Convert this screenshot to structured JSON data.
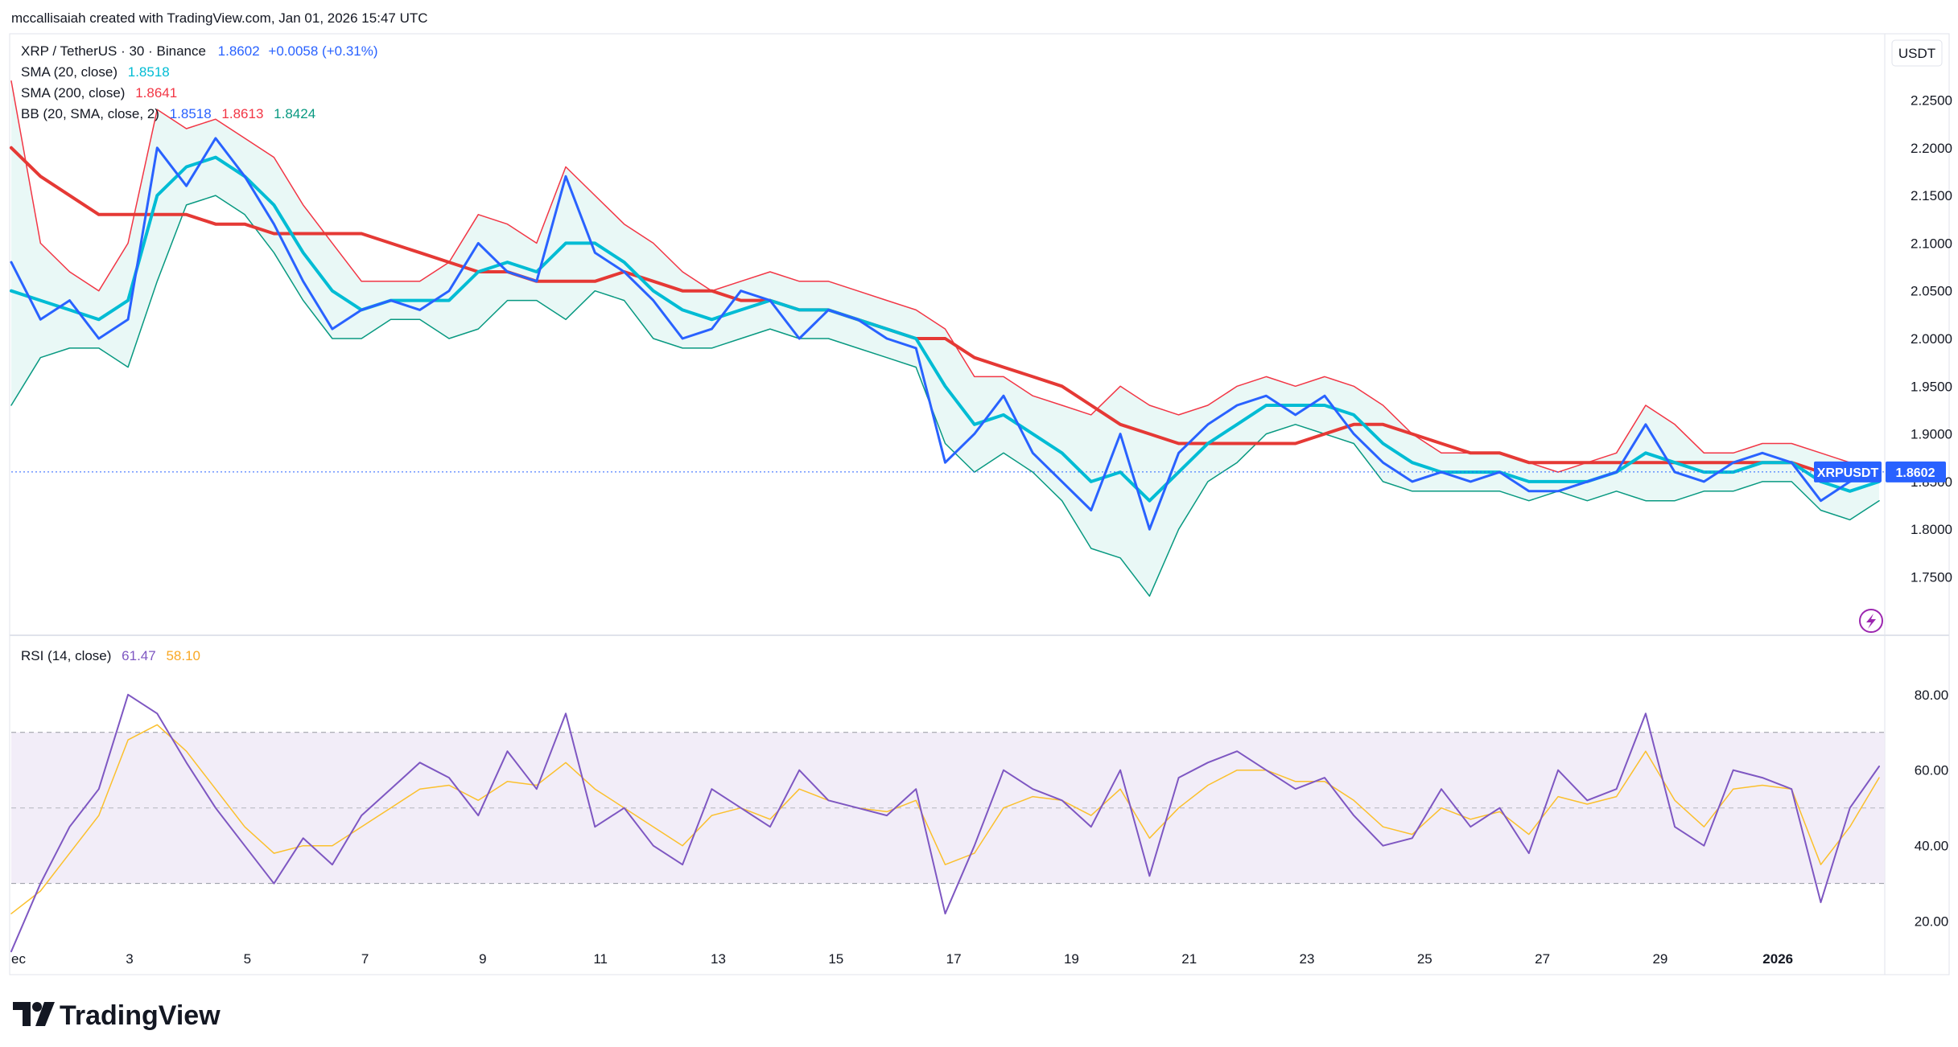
{
  "header": {
    "created_by": "mccallisaiah created with TradingView.com, Jan 01, 2026 15:47 UTC"
  },
  "legend": {
    "symbol": "XRP / TetherUS · 30 · Binance",
    "price": "1.8602",
    "change": "+0.0058 (+0.31%)",
    "sma20_label": "SMA (20, close)",
    "sma20_value": "1.8518",
    "sma200_label": "SMA (200, close)",
    "sma200_value": "1.8641",
    "bb_label": "BB (20, SMA, close, 2)",
    "bb_basis": "1.8518",
    "bb_upper": "1.8613",
    "bb_lower": "1.8424"
  },
  "rsi_legend": {
    "label": "RSI (14, close)",
    "value": "61.47",
    "ma_value": "58.10"
  },
  "currency": "USDT",
  "price_tag": {
    "symbol": "XRPUSDT",
    "value": "1.8602"
  },
  "brand": "TradingView",
  "colors": {
    "price_line": "#2962ff",
    "sma20": "#00bcd4",
    "sma200": "#e53935",
    "bb_upper": "#f23645",
    "bb_lower": "#089981",
    "bb_fill": "#e3f6f4",
    "rsi_line": "#7e57c2",
    "rsi_ma": "#fbc02d",
    "rsi_band": "#ede7f6",
    "last_price_tag": "#2962ff",
    "lightning": "#9c27b0"
  },
  "chart_data": [
    {
      "type": "line",
      "name": "price-pane",
      "x_ticks": [
        "ec",
        "3",
        "5",
        "7",
        "9",
        "11",
        "13",
        "15",
        "17",
        "19",
        "21",
        "23",
        "25",
        "27",
        "29",
        "2026"
      ],
      "y_ticks": [
        "2.2500",
        "2.2000",
        "2.1500",
        "2.1000",
        "2.0500",
        "2.0000",
        "1.9500",
        "1.9000",
        "1.8500",
        "1.8000",
        "1.7500"
      ],
      "ylim": [
        1.71,
        2.29
      ],
      "x": [
        0,
        1,
        2,
        3,
        4,
        5,
        6,
        7,
        8,
        9,
        10,
        11,
        12,
        13,
        14,
        15,
        16,
        17,
        18,
        19,
        20,
        21,
        22,
        23,
        24,
        25,
        26,
        27,
        28,
        29,
        30,
        31,
        32,
        33,
        34,
        35,
        36,
        37,
        38,
        39,
        40,
        41,
        42,
        43,
        44,
        45,
        46,
        47,
        48,
        49,
        50,
        51,
        52,
        53,
        54,
        55,
        56,
        57,
        58,
        59,
        60,
        61,
        62,
        63,
        64
      ],
      "series": [
        {
          "role": "price",
          "values": [
            2.08,
            2.02,
            2.04,
            2.0,
            2.02,
            2.2,
            2.16,
            2.21,
            2.17,
            2.12,
            2.06,
            2.01,
            2.03,
            2.04,
            2.03,
            2.05,
            2.1,
            2.07,
            2.06,
            2.17,
            2.09,
            2.07,
            2.04,
            2.0,
            2.01,
            2.05,
            2.04,
            2.0,
            2.03,
            2.02,
            2.0,
            1.99,
            1.87,
            1.9,
            1.94,
            1.88,
            1.85,
            1.82,
            1.9,
            1.8,
            1.88,
            1.91,
            1.93,
            1.94,
            1.92,
            1.94,
            1.9,
            1.87,
            1.85,
            1.86,
            1.85,
            1.86,
            1.84,
            1.84,
            1.85,
            1.86,
            1.91,
            1.86,
            1.85,
            1.87,
            1.88,
            1.87,
            1.83,
            1.85,
            1.86
          ]
        },
        {
          "role": "sma20",
          "values": [
            2.05,
            2.04,
            2.03,
            2.02,
            2.04,
            2.15,
            2.18,
            2.19,
            2.17,
            2.14,
            2.09,
            2.05,
            2.03,
            2.04,
            2.04,
            2.04,
            2.07,
            2.08,
            2.07,
            2.1,
            2.1,
            2.08,
            2.05,
            2.03,
            2.02,
            2.03,
            2.04,
            2.03,
            2.03,
            2.02,
            2.01,
            2.0,
            1.95,
            1.91,
            1.92,
            1.9,
            1.88,
            1.85,
            1.86,
            1.83,
            1.86,
            1.89,
            1.91,
            1.93,
            1.93,
            1.93,
            1.92,
            1.89,
            1.87,
            1.86,
            1.86,
            1.86,
            1.85,
            1.85,
            1.85,
            1.86,
            1.88,
            1.87,
            1.86,
            1.86,
            1.87,
            1.87,
            1.85,
            1.84,
            1.85
          ]
        },
        {
          "role": "sma200",
          "values": [
            2.2,
            2.17,
            2.15,
            2.13,
            2.13,
            2.13,
            2.13,
            2.12,
            2.12,
            2.11,
            2.11,
            2.11,
            2.11,
            2.1,
            2.09,
            2.08,
            2.07,
            2.07,
            2.06,
            2.06,
            2.06,
            2.07,
            2.06,
            2.05,
            2.05,
            2.04,
            2.04,
            2.03,
            2.03,
            2.02,
            2.01,
            2.0,
            2.0,
            1.98,
            1.97,
            1.96,
            1.95,
            1.93,
            1.91,
            1.9,
            1.89,
            1.89,
            1.89,
            1.89,
            1.89,
            1.9,
            1.91,
            1.91,
            1.9,
            1.89,
            1.88,
            1.88,
            1.87,
            1.87,
            1.87,
            1.87,
            1.87,
            1.87,
            1.87,
            1.87,
            1.87,
            1.87,
            1.86,
            1.86,
            1.86
          ]
        },
        {
          "role": "bb_upper",
          "values": [
            2.27,
            2.1,
            2.07,
            2.05,
            2.1,
            2.24,
            2.22,
            2.23,
            2.21,
            2.19,
            2.14,
            2.1,
            2.06,
            2.06,
            2.06,
            2.08,
            2.13,
            2.12,
            2.1,
            2.18,
            2.15,
            2.12,
            2.1,
            2.07,
            2.05,
            2.06,
            2.07,
            2.06,
            2.06,
            2.05,
            2.04,
            2.03,
            2.01,
            1.96,
            1.96,
            1.94,
            1.93,
            1.92,
            1.95,
            1.93,
            1.92,
            1.93,
            1.95,
            1.96,
            1.95,
            1.96,
            1.95,
            1.93,
            1.9,
            1.88,
            1.88,
            1.88,
            1.87,
            1.86,
            1.87,
            1.88,
            1.93,
            1.91,
            1.88,
            1.88,
            1.89,
            1.89,
            1.88,
            1.87,
            1.87
          ]
        },
        {
          "role": "bb_lower",
          "values": [
            1.93,
            1.98,
            1.99,
            1.99,
            1.97,
            2.06,
            2.14,
            2.15,
            2.13,
            2.09,
            2.04,
            2.0,
            2.0,
            2.02,
            2.02,
            2.0,
            2.01,
            2.04,
            2.04,
            2.02,
            2.05,
            2.04,
            2.0,
            1.99,
            1.99,
            2.0,
            2.01,
            2.0,
            2.0,
            1.99,
            1.98,
            1.97,
            1.89,
            1.86,
            1.88,
            1.86,
            1.83,
            1.78,
            1.77,
            1.73,
            1.8,
            1.85,
            1.87,
            1.9,
            1.91,
            1.9,
            1.89,
            1.85,
            1.84,
            1.84,
            1.84,
            1.84,
            1.83,
            1.84,
            1.83,
            1.84,
            1.83,
            1.83,
            1.84,
            1.84,
            1.85,
            1.85,
            1.82,
            1.81,
            1.83
          ]
        }
      ],
      "last_price": 1.8602
    },
    {
      "type": "line",
      "name": "rsi-pane",
      "y_ticks": [
        "80.00",
        "60.00",
        "40.00",
        "20.00"
      ],
      "ylim": [
        8,
        94
      ],
      "bands": [
        30,
        50,
        70
      ],
      "x": [
        0,
        1,
        2,
        3,
        4,
        5,
        6,
        7,
        8,
        9,
        10,
        11,
        12,
        13,
        14,
        15,
        16,
        17,
        18,
        19,
        20,
        21,
        22,
        23,
        24,
        25,
        26,
        27,
        28,
        29,
        30,
        31,
        32,
        33,
        34,
        35,
        36,
        37,
        38,
        39,
        40,
        41,
        42,
        43,
        44,
        45,
        46,
        47,
        48,
        49,
        50,
        51,
        52,
        53,
        54,
        55,
        56,
        57,
        58,
        59,
        60,
        61,
        62,
        63,
        64
      ],
      "series": [
        {
          "role": "rsi",
          "values": [
            12,
            30,
            45,
            55,
            80,
            75,
            62,
            50,
            40,
            30,
            42,
            35,
            48,
            55,
            62,
            58,
            48,
            65,
            55,
            75,
            45,
            50,
            40,
            35,
            55,
            50,
            45,
            60,
            52,
            50,
            48,
            55,
            22,
            40,
            60,
            55,
            52,
            45,
            60,
            32,
            58,
            62,
            65,
            60,
            55,
            58,
            48,
            40,
            42,
            55,
            45,
            50,
            38,
            60,
            52,
            55,
            75,
            45,
            40,
            60,
            58,
            55,
            25,
            50,
            61
          ]
        },
        {
          "role": "rsi_ma",
          "values": [
            22,
            28,
            38,
            48,
            68,
            72,
            65,
            55,
            45,
            38,
            40,
            40,
            45,
            50,
            55,
            56,
            52,
            57,
            56,
            62,
            55,
            50,
            45,
            40,
            48,
            50,
            47,
            55,
            52,
            50,
            49,
            52,
            35,
            38,
            50,
            53,
            52,
            48,
            55,
            42,
            50,
            56,
            60,
            60,
            57,
            57,
            52,
            45,
            43,
            50,
            47,
            49,
            43,
            53,
            51,
            53,
            65,
            52,
            45,
            55,
            56,
            55,
            35,
            45,
            58
          ]
        }
      ]
    }
  ]
}
